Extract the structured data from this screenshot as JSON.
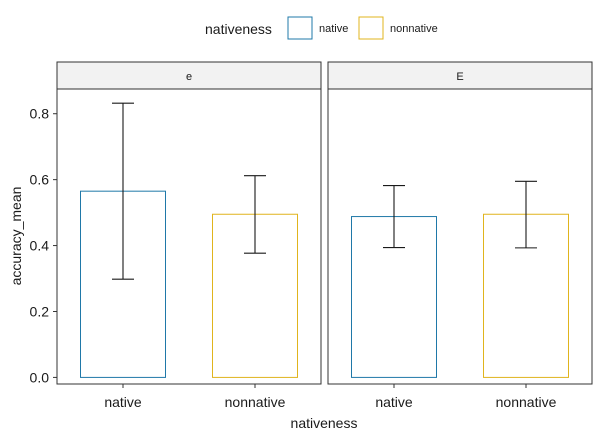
{
  "chart_data": {
    "type": "bar",
    "legend": {
      "title": "nativeness",
      "position": "top",
      "entries": [
        {
          "label": "native",
          "color": "#1f78a8"
        },
        {
          "label": "nonnative",
          "color": "#e0b41d"
        }
      ]
    },
    "xlabel": "nativeness",
    "ylabel": "accuracy_mean",
    "ylim": [
      -0.02,
      0.875
    ],
    "yticks": [
      "0.0",
      "0.2",
      "0.4",
      "0.6",
      "0.8"
    ],
    "ytick_values": [
      0.0,
      0.2,
      0.4,
      0.6,
      0.8
    ],
    "categories": [
      "native",
      "nonnative"
    ],
    "grid": false,
    "panels": [
      {
        "label": "e",
        "bars": [
          {
            "category": "native",
            "value": 0.565,
            "err_low": 0.298,
            "err_high": 0.832
          },
          {
            "category": "nonnative",
            "value": 0.495,
            "err_low": 0.377,
            "err_high": 0.612
          }
        ]
      },
      {
        "label": "E",
        "bars": [
          {
            "category": "native",
            "value": 0.488,
            "err_low": 0.394,
            "err_high": 0.582
          },
          {
            "category": "nonnative",
            "value": 0.495,
            "err_low": 0.393,
            "err_high": 0.595
          }
        ]
      }
    ]
  }
}
